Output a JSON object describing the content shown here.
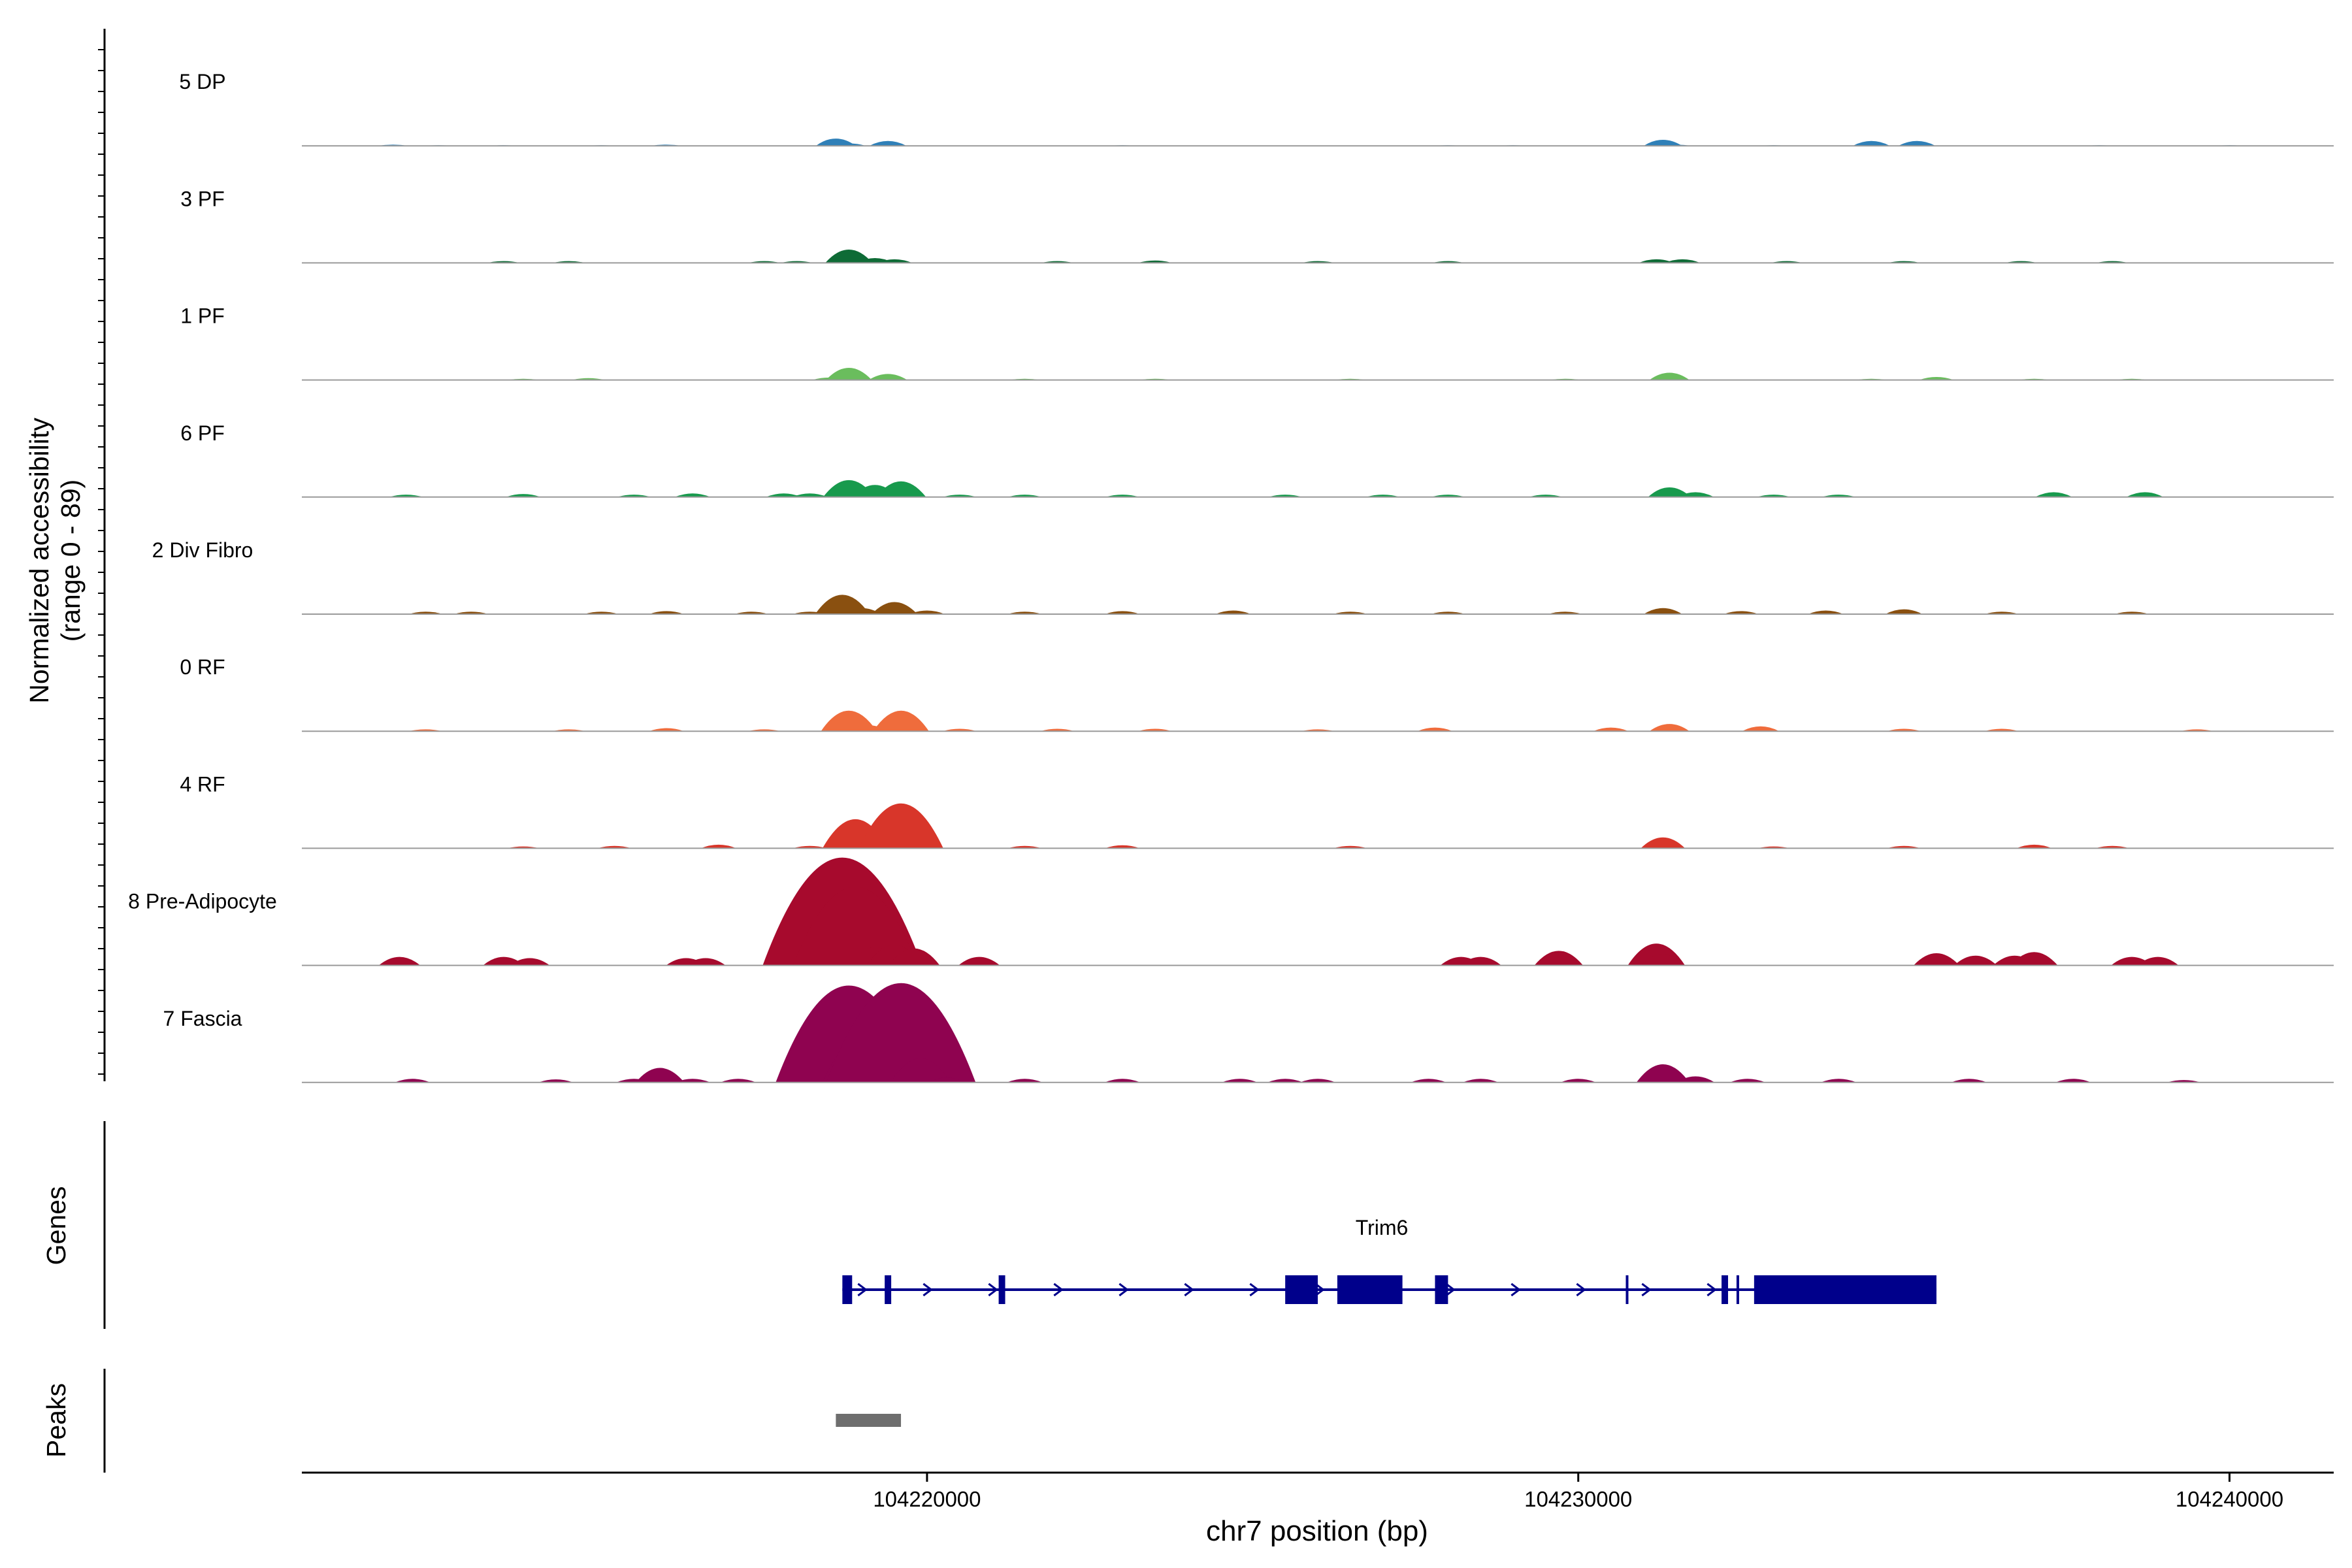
{
  "chart_data": {
    "type": "area",
    "title": "",
    "coverage_ylabel_line1": "Normalized accessibility",
    "coverage_ylabel_line2": "(range 0 - 89)",
    "ylim": [
      0,
      89
    ],
    "xlabel": "chr7 position (bp)",
    "xlim": [
      104210400,
      104241600
    ],
    "x_ticks": [
      {
        "value": 104220000,
        "label": "104220000"
      },
      {
        "value": 104230000,
        "label": "104230000"
      },
      {
        "value": 104240000,
        "label": "104240000"
      }
    ],
    "series": [
      {
        "name": "5 DP",
        "color": "#2f80b8",
        "points": [
          [
            104211800,
            1
          ],
          [
            104212500,
            0.5
          ],
          [
            104213500,
            0.5
          ],
          [
            104215000,
            0.5
          ],
          [
            104216000,
            1
          ],
          [
            104218600,
            6
          ],
          [
            104218800,
            2
          ],
          [
            104219400,
            4
          ],
          [
            104223000,
            0.5
          ],
          [
            104228000,
            0.5
          ],
          [
            104229000,
            0.5
          ],
          [
            104231300,
            5
          ],
          [
            104231500,
            1
          ],
          [
            104233000,
            0.5
          ],
          [
            104234500,
            4
          ],
          [
            104235200,
            4
          ],
          [
            104238000,
            0.5
          ],
          [
            104240000,
            0.5
          ]
        ]
      },
      {
        "name": "3 PF",
        "color": "#0e6b36",
        "points": [
          [
            104211700,
            0.5
          ],
          [
            104213500,
            1.5
          ],
          [
            104214500,
            1.5
          ],
          [
            104217500,
            1.5
          ],
          [
            104218000,
            1.5
          ],
          [
            104218800,
            11
          ],
          [
            104219200,
            4
          ],
          [
            104219500,
            3
          ],
          [
            104222000,
            1.5
          ],
          [
            104223500,
            2
          ],
          [
            104226000,
            1.5
          ],
          [
            104228000,
            1.5
          ],
          [
            104231200,
            3
          ],
          [
            104231600,
            3
          ],
          [
            104233200,
            1.5
          ],
          [
            104235000,
            1.5
          ],
          [
            104236800,
            1.5
          ],
          [
            104238200,
            1.5
          ]
        ]
      },
      {
        "name": "1 PF",
        "color": "#6abd5d",
        "points": [
          [
            104213800,
            1
          ],
          [
            104214800,
            1.5
          ],
          [
            104218500,
            2
          ],
          [
            104218800,
            10
          ],
          [
            104219400,
            5
          ],
          [
            104221500,
            1
          ],
          [
            104223500,
            1
          ],
          [
            104226500,
            1
          ],
          [
            104229800,
            1
          ],
          [
            104231400,
            6
          ],
          [
            104234500,
            1
          ],
          [
            104235500,
            2.5
          ],
          [
            104237000,
            1
          ],
          [
            104238500,
            1
          ]
        ]
      },
      {
        "name": "6 PF",
        "color": "#189a4d",
        "points": [
          [
            104212000,
            2
          ],
          [
            104213800,
            2.5
          ],
          [
            104215500,
            2
          ],
          [
            104216400,
            3
          ],
          [
            104217800,
            3
          ],
          [
            104218200,
            3
          ],
          [
            104218800,
            14
          ],
          [
            104219200,
            10
          ],
          [
            104219600,
            13
          ],
          [
            104220500,
            2
          ],
          [
            104221500,
            2
          ],
          [
            104223000,
            2
          ],
          [
            104225500,
            2
          ],
          [
            104227000,
            2
          ],
          [
            104228000,
            2
          ],
          [
            104229500,
            2
          ],
          [
            104231400,
            8
          ],
          [
            104231800,
            4
          ],
          [
            104233000,
            2
          ],
          [
            104234000,
            2
          ],
          [
            104237300,
            4
          ],
          [
            104238700,
            4
          ]
        ]
      },
      {
        "name": "2 Div Fibro",
        "color": "#8a5010",
        "points": [
          [
            104212300,
            2
          ],
          [
            104213000,
            2
          ],
          [
            104215000,
            2
          ],
          [
            104216000,
            2.5
          ],
          [
            104217300,
            2
          ],
          [
            104218200,
            2
          ],
          [
            104218700,
            16
          ],
          [
            104219000,
            5
          ],
          [
            104219500,
            10
          ],
          [
            104220000,
            3
          ],
          [
            104221500,
            2
          ],
          [
            104223000,
            2.5
          ],
          [
            104224700,
            3
          ],
          [
            104226500,
            2
          ],
          [
            104228000,
            2
          ],
          [
            104229800,
            2
          ],
          [
            104231300,
            5
          ],
          [
            104232500,
            2.5
          ],
          [
            104233800,
            3
          ],
          [
            104235000,
            4
          ],
          [
            104236500,
            2
          ],
          [
            104238500,
            2
          ]
        ]
      },
      {
        "name": "0 RF",
        "color": "#ef6c3c",
        "points": [
          [
            104212300,
            1.5
          ],
          [
            104214500,
            1.5
          ],
          [
            104216000,
            2.5
          ],
          [
            104217500,
            1.5
          ],
          [
            104218800,
            17
          ],
          [
            104219100,
            5
          ],
          [
            104219600,
            17
          ],
          [
            104220500,
            2
          ],
          [
            104222000,
            2
          ],
          [
            104223500,
            2
          ],
          [
            104226000,
            1.5
          ],
          [
            104227800,
            3
          ],
          [
            104230500,
            3
          ],
          [
            104231400,
            6
          ],
          [
            104232800,
            4
          ],
          [
            104235000,
            2
          ],
          [
            104236500,
            2
          ],
          [
            104239500,
            1.5
          ]
        ]
      },
      {
        "name": "4 RF",
        "color": "#d8362a",
        "points": [
          [
            104213800,
            1.5
          ],
          [
            104215200,
            2
          ],
          [
            104216800,
            3
          ],
          [
            104218200,
            2
          ],
          [
            104218900,
            24
          ],
          [
            104219200,
            8
          ],
          [
            104219600,
            37
          ],
          [
            104221500,
            2
          ],
          [
            104223000,
            2.5
          ],
          [
            104226500,
            2
          ],
          [
            104231300,
            9
          ],
          [
            104233000,
            1.5
          ],
          [
            104235000,
            2
          ],
          [
            104237000,
            3
          ],
          [
            104238200,
            2
          ]
        ]
      },
      {
        "name": "8 Pre-Adipocyte",
        "color": "#a70a2d",
        "points": [
          [
            104211900,
            7
          ],
          [
            104213500,
            7
          ],
          [
            104213900,
            6
          ],
          [
            104216300,
            6
          ],
          [
            104216600,
            6
          ],
          [
            104218000,
            9
          ],
          [
            104218200,
            6
          ],
          [
            104218700,
            89
          ],
          [
            104218900,
            65
          ],
          [
            104219200,
            15
          ],
          [
            104219500,
            17
          ],
          [
            104219800,
            14
          ],
          [
            104220800,
            7
          ],
          [
            104228200,
            7
          ],
          [
            104228500,
            7
          ],
          [
            104229700,
            12
          ],
          [
            104231200,
            18
          ],
          [
            104231300,
            9
          ],
          [
            104235500,
            10
          ],
          [
            104236100,
            8
          ],
          [
            104236700,
            8
          ],
          [
            104237000,
            11
          ],
          [
            104238500,
            7
          ],
          [
            104238900,
            7
          ]
        ]
      },
      {
        "name": "7 Fascia",
        "color": "#8f0350",
        "points": [
          [
            104212100,
            3
          ],
          [
            104214300,
            2.5
          ],
          [
            104215500,
            3
          ],
          [
            104215900,
            12
          ],
          [
            104216400,
            3
          ],
          [
            104217100,
            3
          ],
          [
            104218400,
            20
          ],
          [
            104218800,
            80
          ],
          [
            104219100,
            42
          ],
          [
            104219300,
            30
          ],
          [
            104219600,
            82
          ],
          [
            104219900,
            20
          ],
          [
            104220300,
            4
          ],
          [
            104221500,
            3
          ],
          [
            104223000,
            3
          ],
          [
            104224800,
            3
          ],
          [
            104225500,
            3
          ],
          [
            104226000,
            3
          ],
          [
            104227700,
            3
          ],
          [
            104228500,
            3
          ],
          [
            104230000,
            3
          ],
          [
            104231300,
            15
          ],
          [
            104231800,
            5
          ],
          [
            104232600,
            3
          ],
          [
            104234000,
            3
          ],
          [
            104236000,
            3
          ],
          [
            104237600,
            3
          ],
          [
            104239300,
            2
          ]
        ]
      }
    ],
    "genes_label": "Genes",
    "gene": {
      "name": "Trim6",
      "color": "#00008b",
      "start": 104218700,
      "end": 104235500,
      "exons": [
        [
          104218700,
          104218850
        ],
        [
          104219350,
          104219450
        ],
        [
          104221100,
          104221200
        ],
        [
          104225500,
          104226000
        ],
        [
          104226300,
          104227300
        ],
        [
          104227800,
          104228000
        ],
        [
          104232200,
          104232300
        ],
        [
          104232700,
          104235500
        ]
      ],
      "utr_ticks": [
        104230750,
        104232450
      ]
    },
    "peaks_label": "Peaks",
    "peaks": [
      {
        "start": 104218600,
        "end": 104219600,
        "color": "#6e6e6e"
      }
    ]
  }
}
